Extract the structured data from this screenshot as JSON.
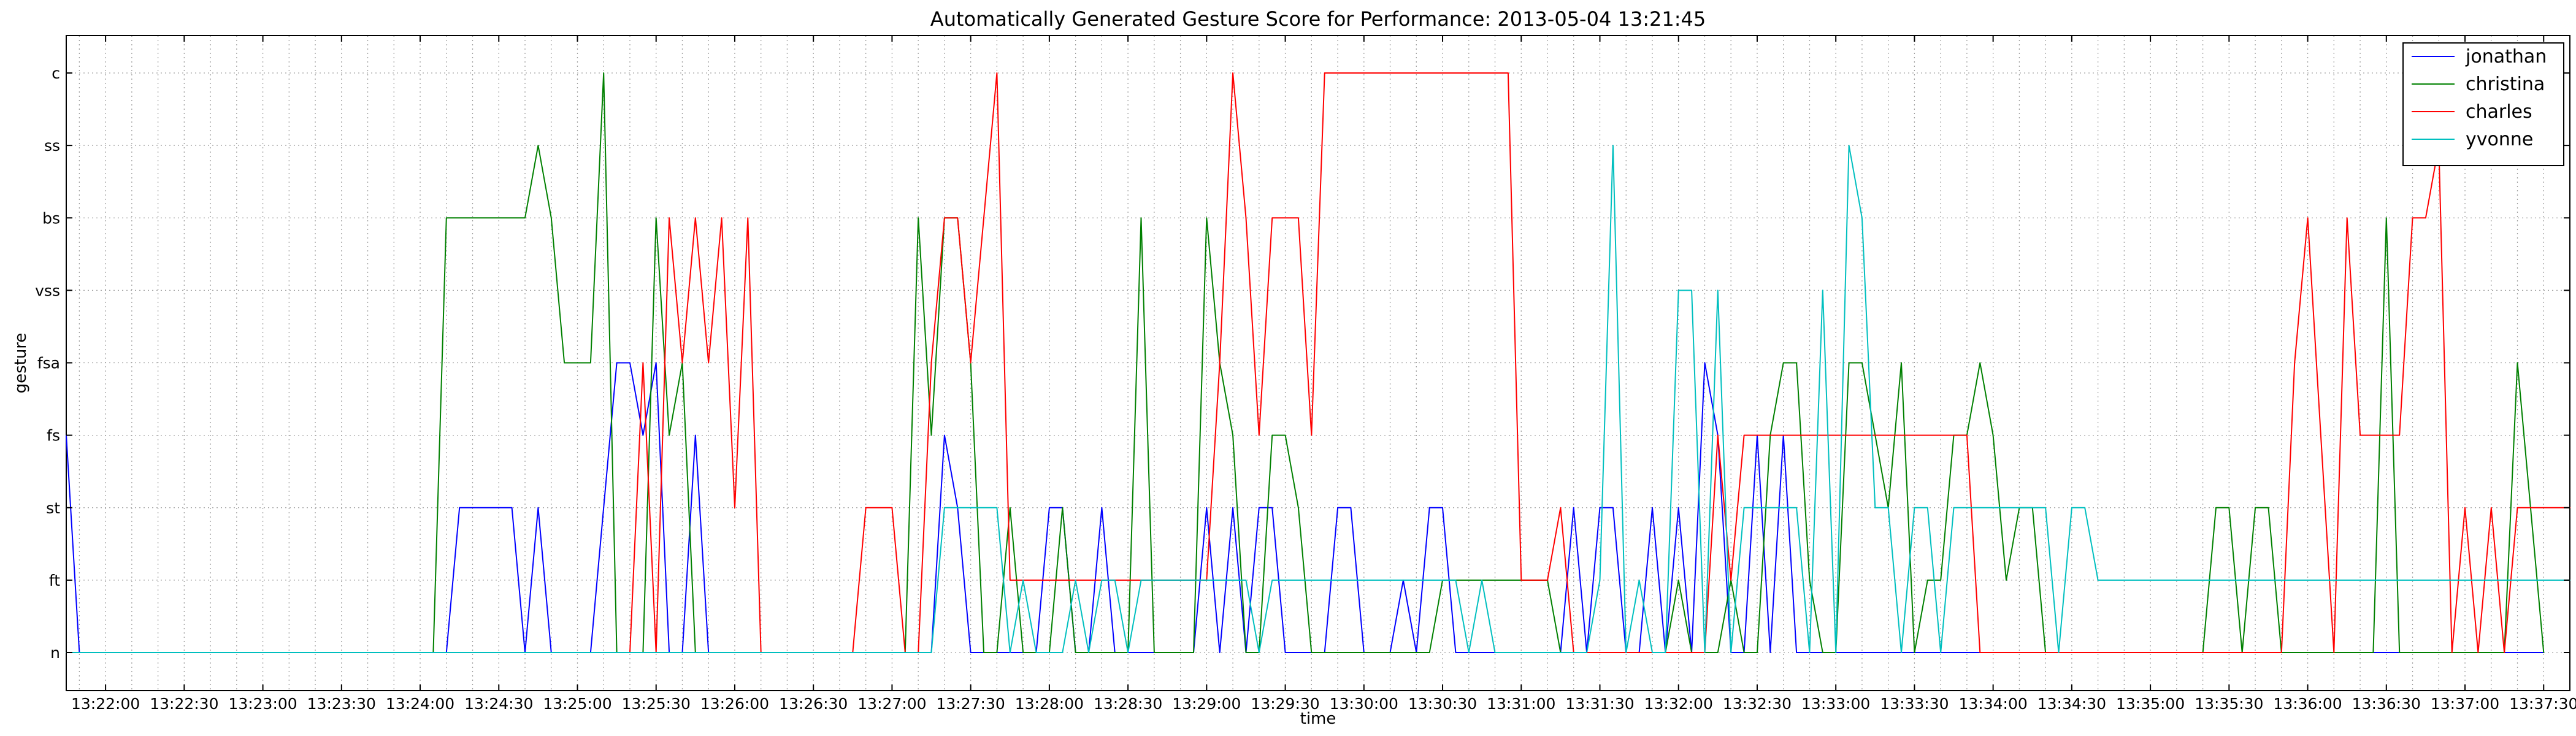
{
  "chart_data": {
    "type": "line",
    "title": "Automatically Generated Gesture Score for Performance: 2013-05-04 13:21:45",
    "xlabel": "time",
    "ylabel": "gesture",
    "x_tick_labels": [
      "13:22:00",
      "13:22:30",
      "13:23:00",
      "13:23:30",
      "13:24:00",
      "13:24:30",
      "13:25:00",
      "13:25:30",
      "13:26:00",
      "13:26:30",
      "13:27:00",
      "13:27:30",
      "13:28:00",
      "13:28:30",
      "13:29:00",
      "13:29:30",
      "13:30:00",
      "13:30:30",
      "13:31:00",
      "13:31:30",
      "13:32:00",
      "13:32:30",
      "13:33:00",
      "13:33:30",
      "13:34:00",
      "13:34:30",
      "13:35:00",
      "13:35:30",
      "13:36:00",
      "13:36:30",
      "13:37:00",
      "13:37:30"
    ],
    "xlim": [
      "13:21:45",
      "13:37:40"
    ],
    "categories": [
      "n",
      "ft",
      "st",
      "fs",
      "fsa",
      "vss",
      "bs",
      "ss",
      "c"
    ],
    "grid": true,
    "legend_position": "top-right",
    "series": [
      {
        "name": "jonathan",
        "color": "#0000ff",
        "points": [
          [
            "13:21:45",
            "fs"
          ],
          [
            "13:21:50",
            "n"
          ],
          [
            "13:24:10",
            "n"
          ],
          [
            "13:24:15",
            "st"
          ],
          [
            "13:24:35",
            "st"
          ],
          [
            "13:24:40",
            "n"
          ],
          [
            "13:24:45",
            "st"
          ],
          [
            "13:24:50",
            "n"
          ],
          [
            "13:25:05",
            "n"
          ],
          [
            "13:25:10",
            "st"
          ],
          [
            "13:25:15",
            "fsa"
          ],
          [
            "13:25:20",
            "fsa"
          ],
          [
            "13:25:25",
            "fs"
          ],
          [
            "13:25:30",
            "fsa"
          ],
          [
            "13:25:35",
            "n"
          ],
          [
            "13:25:40",
            "n"
          ],
          [
            "13:25:45",
            "fs"
          ],
          [
            "13:25:50",
            "n"
          ],
          [
            "13:27:15",
            "n"
          ],
          [
            "13:27:20",
            "fs"
          ],
          [
            "13:27:25",
            "st"
          ],
          [
            "13:27:30",
            "n"
          ],
          [
            "13:27:55",
            "n"
          ],
          [
            "13:28:00",
            "st"
          ],
          [
            "13:28:05",
            "st"
          ],
          [
            "13:28:10",
            "n"
          ],
          [
            "13:28:15",
            "n"
          ],
          [
            "13:28:20",
            "st"
          ],
          [
            "13:28:25",
            "n"
          ],
          [
            "13:28:55",
            "n"
          ],
          [
            "13:29:00",
            "st"
          ],
          [
            "13:29:05",
            "n"
          ],
          [
            "13:29:10",
            "st"
          ],
          [
            "13:29:15",
            "n"
          ],
          [
            "13:29:20",
            "st"
          ],
          [
            "13:29:25",
            "st"
          ],
          [
            "13:29:30",
            "n"
          ],
          [
            "13:29:45",
            "n"
          ],
          [
            "13:29:50",
            "st"
          ],
          [
            "13:29:55",
            "st"
          ],
          [
            "13:30:00",
            "n"
          ],
          [
            "13:30:10",
            "n"
          ],
          [
            "13:30:15",
            "ft"
          ],
          [
            "13:30:20",
            "n"
          ],
          [
            "13:30:25",
            "st"
          ],
          [
            "13:30:30",
            "st"
          ],
          [
            "13:30:35",
            "n"
          ],
          [
            "13:31:15",
            "n"
          ],
          [
            "13:31:20",
            "st"
          ],
          [
            "13:31:25",
            "n"
          ],
          [
            "13:31:30",
            "st"
          ],
          [
            "13:31:35",
            "st"
          ],
          [
            "13:31:40",
            "n"
          ],
          [
            "13:31:45",
            "n"
          ],
          [
            "13:31:50",
            "st"
          ],
          [
            "13:31:55",
            "n"
          ],
          [
            "13:32:00",
            "st"
          ],
          [
            "13:32:05",
            "n"
          ],
          [
            "13:32:10",
            "fsa"
          ],
          [
            "13:32:15",
            "fs"
          ],
          [
            "13:32:20",
            "n"
          ],
          [
            "13:32:25",
            "n"
          ],
          [
            "13:32:30",
            "fs"
          ],
          [
            "13:32:35",
            "n"
          ],
          [
            "13:32:40",
            "fs"
          ],
          [
            "13:32:45",
            "n"
          ],
          [
            "13:37:30",
            "n"
          ]
        ]
      },
      {
        "name": "christina",
        "color": "#008000",
        "points": [
          [
            "13:21:45",
            "n"
          ],
          [
            "13:24:05",
            "n"
          ],
          [
            "13:24:10",
            "bs"
          ],
          [
            "13:24:40",
            "bs"
          ],
          [
            "13:24:45",
            "ss"
          ],
          [
            "13:24:50",
            "bs"
          ],
          [
            "13:24:55",
            "fsa"
          ],
          [
            "13:25:05",
            "fsa"
          ],
          [
            "13:25:10",
            "c"
          ],
          [
            "13:25:15",
            "n"
          ],
          [
            "13:25:25",
            "n"
          ],
          [
            "13:25:30",
            "bs"
          ],
          [
            "13:25:35",
            "fs"
          ],
          [
            "13:25:40",
            "fsa"
          ],
          [
            "13:25:45",
            "n"
          ],
          [
            "13:27:00",
            "n"
          ],
          [
            "13:27:05",
            "n"
          ],
          [
            "13:27:10",
            "bs"
          ],
          [
            "13:27:15",
            "fs"
          ],
          [
            "13:27:20",
            "bs"
          ],
          [
            "13:27:25",
            "bs"
          ],
          [
            "13:27:30",
            "fsa"
          ],
          [
            "13:27:35",
            "n"
          ],
          [
            "13:27:40",
            "n"
          ],
          [
            "13:27:45",
            "st"
          ],
          [
            "13:27:50",
            "n"
          ],
          [
            "13:28:00",
            "n"
          ],
          [
            "13:28:05",
            "st"
          ],
          [
            "13:28:10",
            "n"
          ],
          [
            "13:28:30",
            "n"
          ],
          [
            "13:28:35",
            "bs"
          ],
          [
            "13:28:40",
            "n"
          ],
          [
            "13:28:55",
            "n"
          ],
          [
            "13:29:00",
            "bs"
          ],
          [
            "13:29:05",
            "fsa"
          ],
          [
            "13:29:10",
            "fs"
          ],
          [
            "13:29:15",
            "n"
          ],
          [
            "13:29:20",
            "n"
          ],
          [
            "13:29:25",
            "fs"
          ],
          [
            "13:29:30",
            "fs"
          ],
          [
            "13:29:35",
            "st"
          ],
          [
            "13:29:40",
            "n"
          ],
          [
            "13:30:25",
            "n"
          ],
          [
            "13:30:30",
            "ft"
          ],
          [
            "13:30:35",
            "ft"
          ],
          [
            "13:31:10",
            "ft"
          ],
          [
            "13:31:15",
            "n"
          ],
          [
            "13:31:55",
            "n"
          ],
          [
            "13:32:00",
            "ft"
          ],
          [
            "13:32:05",
            "n"
          ],
          [
            "13:32:15",
            "n"
          ],
          [
            "13:32:20",
            "ft"
          ],
          [
            "13:32:25",
            "n"
          ],
          [
            "13:32:30",
            "n"
          ],
          [
            "13:32:35",
            "fs"
          ],
          [
            "13:32:40",
            "fsa"
          ],
          [
            "13:32:45",
            "fsa"
          ],
          [
            "13:32:50",
            "ft"
          ],
          [
            "13:32:55",
            "n"
          ],
          [
            "13:33:00",
            "n"
          ],
          [
            "13:33:05",
            "fsa"
          ],
          [
            "13:33:10",
            "fsa"
          ],
          [
            "13:33:15",
            "fs"
          ],
          [
            "13:33:20",
            "st"
          ],
          [
            "13:33:25",
            "fsa"
          ],
          [
            "13:33:30",
            "n"
          ],
          [
            "13:33:35",
            "ft"
          ],
          [
            "13:33:40",
            "ft"
          ],
          [
            "13:33:45",
            "fs"
          ],
          [
            "13:33:50",
            "fs"
          ],
          [
            "13:33:55",
            "fsa"
          ],
          [
            "13:34:00",
            "fs"
          ],
          [
            "13:34:05",
            "ft"
          ],
          [
            "13:34:10",
            "st"
          ],
          [
            "13:34:15",
            "st"
          ],
          [
            "13:34:20",
            "n"
          ],
          [
            "13:35:20",
            "n"
          ],
          [
            "13:35:25",
            "st"
          ],
          [
            "13:35:30",
            "st"
          ],
          [
            "13:35:35",
            "n"
          ],
          [
            "13:35:40",
            "st"
          ],
          [
            "13:35:45",
            "st"
          ],
          [
            "13:35:50",
            "n"
          ],
          [
            "13:36:25",
            "n"
          ],
          [
            "13:36:30",
            "bs"
          ],
          [
            "13:36:35",
            "n"
          ],
          [
            "13:37:15",
            "n"
          ],
          [
            "13:37:20",
            "fsa"
          ],
          [
            "13:37:25",
            "st"
          ],
          [
            "13:37:30",
            "n"
          ]
        ]
      },
      {
        "name": "charles",
        "color": "#ff0000",
        "points": [
          [
            "13:21:45",
            "n"
          ],
          [
            "13:25:20",
            "n"
          ],
          [
            "13:25:25",
            "fsa"
          ],
          [
            "13:25:30",
            "n"
          ],
          [
            "13:25:35",
            "bs"
          ],
          [
            "13:25:40",
            "fsa"
          ],
          [
            "13:25:45",
            "bs"
          ],
          [
            "13:25:50",
            "fsa"
          ],
          [
            "13:25:55",
            "bs"
          ],
          [
            "13:26:00",
            "st"
          ],
          [
            "13:26:05",
            "bs"
          ],
          [
            "13:26:10",
            "n"
          ],
          [
            "13:26:45",
            "n"
          ],
          [
            "13:26:50",
            "st"
          ],
          [
            "13:27:00",
            "st"
          ],
          [
            "13:27:05",
            "n"
          ],
          [
            "13:27:10",
            "n"
          ],
          [
            "13:27:15",
            "fsa"
          ],
          [
            "13:27:20",
            "bs"
          ],
          [
            "13:27:25",
            "bs"
          ],
          [
            "13:27:30",
            "fsa"
          ],
          [
            "13:27:35",
            "bs"
          ],
          [
            "13:27:40",
            "c"
          ],
          [
            "13:27:45",
            "ft"
          ],
          [
            "13:29:00",
            "ft"
          ],
          [
            "13:29:05",
            "fsa"
          ],
          [
            "13:29:10",
            "c"
          ],
          [
            "13:29:15",
            "bs"
          ],
          [
            "13:29:20",
            "fs"
          ],
          [
            "13:29:25",
            "bs"
          ],
          [
            "13:29:35",
            "bs"
          ],
          [
            "13:29:40",
            "fs"
          ],
          [
            "13:29:45",
            "c"
          ],
          [
            "13:30:55",
            "c"
          ],
          [
            "13:31:00",
            "ft"
          ],
          [
            "13:31:10",
            "ft"
          ],
          [
            "13:31:15",
            "st"
          ],
          [
            "13:31:20",
            "n"
          ],
          [
            "13:32:10",
            "n"
          ],
          [
            "13:32:15",
            "fs"
          ],
          [
            "13:32:20",
            "ft"
          ],
          [
            "13:32:25",
            "fs"
          ],
          [
            "13:33:50",
            "fs"
          ],
          [
            "13:33:55",
            "n"
          ],
          [
            "13:35:50",
            "n"
          ],
          [
            "13:35:55",
            "fsa"
          ],
          [
            "13:36:00",
            "bs"
          ],
          [
            "13:36:05",
            "fs"
          ],
          [
            "13:36:10",
            "n"
          ],
          [
            "13:36:15",
            "bs"
          ],
          [
            "13:36:20",
            "fs"
          ],
          [
            "13:36:35",
            "fs"
          ],
          [
            "13:36:40",
            "bs"
          ],
          [
            "13:36:45",
            "bs"
          ],
          [
            "13:36:50",
            "ss"
          ],
          [
            "13:36:55",
            "n"
          ],
          [
            "13:37:00",
            "st"
          ],
          [
            "13:37:05",
            "n"
          ],
          [
            "13:37:10",
            "st"
          ],
          [
            "13:37:15",
            "n"
          ],
          [
            "13:37:20",
            "st"
          ],
          [
            "13:37:40",
            "st"
          ]
        ]
      },
      {
        "name": "yvonne",
        "color": "#00bfbf",
        "points": [
          [
            "13:21:45",
            "n"
          ],
          [
            "13:27:15",
            "n"
          ],
          [
            "13:27:20",
            "st"
          ],
          [
            "13:27:40",
            "st"
          ],
          [
            "13:27:45",
            "n"
          ],
          [
            "13:27:50",
            "ft"
          ],
          [
            "13:27:55",
            "n"
          ],
          [
            "13:28:05",
            "n"
          ],
          [
            "13:28:10",
            "ft"
          ],
          [
            "13:28:15",
            "n"
          ],
          [
            "13:28:20",
            "ft"
          ],
          [
            "13:28:25",
            "ft"
          ],
          [
            "13:28:30",
            "n"
          ],
          [
            "13:28:35",
            "ft"
          ],
          [
            "13:29:15",
            "ft"
          ],
          [
            "13:29:20",
            "n"
          ],
          [
            "13:29:25",
            "ft"
          ],
          [
            "13:30:35",
            "ft"
          ],
          [
            "13:30:40",
            "n"
          ],
          [
            "13:30:45",
            "ft"
          ],
          [
            "13:30:50",
            "n"
          ],
          [
            "13:30:55",
            "n"
          ],
          [
            "13:31:00",
            "n"
          ],
          [
            "13:31:25",
            "n"
          ],
          [
            "13:31:30",
            "ft"
          ],
          [
            "13:31:35",
            "ss"
          ],
          [
            "13:31:40",
            "n"
          ],
          [
            "13:31:45",
            "ft"
          ],
          [
            "13:31:50",
            "n"
          ],
          [
            "13:31:55",
            "n"
          ],
          [
            "13:32:00",
            "vss"
          ],
          [
            "13:32:05",
            "vss"
          ],
          [
            "13:32:10",
            "n"
          ],
          [
            "13:32:15",
            "vss"
          ],
          [
            "13:32:20",
            "n"
          ],
          [
            "13:32:25",
            "st"
          ],
          [
            "13:32:45",
            "st"
          ],
          [
            "13:32:50",
            "n"
          ],
          [
            "13:32:55",
            "vss"
          ],
          [
            "13:33:00",
            "n"
          ],
          [
            "13:33:05",
            "ss"
          ],
          [
            "13:33:10",
            "bs"
          ],
          [
            "13:33:15",
            "st"
          ],
          [
            "13:33:20",
            "st"
          ],
          [
            "13:33:25",
            "n"
          ],
          [
            "13:33:30",
            "st"
          ],
          [
            "13:33:35",
            "st"
          ],
          [
            "13:33:40",
            "n"
          ],
          [
            "13:33:45",
            "st"
          ],
          [
            "13:34:20",
            "st"
          ],
          [
            "13:34:25",
            "n"
          ],
          [
            "13:34:30",
            "st"
          ],
          [
            "13:34:35",
            "st"
          ],
          [
            "13:34:40",
            "ft"
          ],
          [
            "13:37:40",
            "ft"
          ]
        ]
      }
    ]
  }
}
